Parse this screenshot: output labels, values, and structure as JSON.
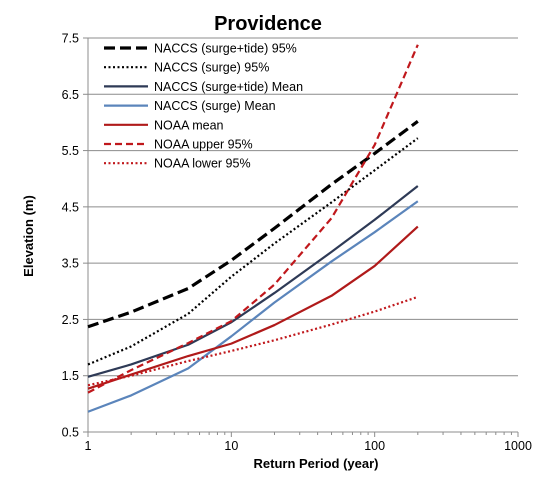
{
  "chart_data": {
    "type": "line",
    "title": "Providence",
    "xlabel": "Return Period (year)",
    "ylabel": "Elevation (m)",
    "x_scale": "log",
    "xlim": [
      1,
      1000
    ],
    "ylim": [
      0.5,
      7.5
    ],
    "x_ticks": [
      1,
      10,
      100,
      1000
    ],
    "x_tick_labels": [
      "1",
      "10",
      "100",
      "1000"
    ],
    "y_ticks": [
      0.5,
      1.5,
      2.5,
      3.5,
      4.5,
      5.5,
      6.5,
      7.5
    ],
    "y_tick_labels": [
      "0.5",
      "1.5",
      "2.5",
      "3.5",
      "4.5",
      "5.5",
      "6.5",
      "7.5"
    ],
    "grid": "horizontal",
    "legend_position": "top-left",
    "series": [
      {
        "name": "NACCS (surge+tide) 95%",
        "color": "#000000",
        "dash": "long-dash",
        "x": [
          1,
          2,
          5,
          10,
          20,
          50,
          100,
          200
        ],
        "y": [
          2.37,
          2.63,
          3.05,
          3.55,
          4.12,
          4.9,
          5.45,
          6.02
        ]
      },
      {
        "name": "NACCS (surge) 95%",
        "color": "#000000",
        "dash": "dot",
        "x": [
          1,
          2,
          5,
          10,
          20,
          50,
          100,
          200
        ],
        "y": [
          1.7,
          2.02,
          2.6,
          3.26,
          3.85,
          4.58,
          5.15,
          5.72
        ]
      },
      {
        "name": "NACCS (surge+tide) Mean",
        "color": "#2e3a56",
        "dash": "solid",
        "x": [
          1,
          2,
          5,
          10,
          20,
          50,
          100,
          200
        ],
        "y": [
          1.48,
          1.7,
          2.05,
          2.45,
          2.97,
          3.7,
          4.27,
          4.87
        ]
      },
      {
        "name": "NACCS (surge) Mean",
        "color": "#5b85bb",
        "dash": "solid",
        "x": [
          1,
          2,
          5,
          10,
          20,
          50,
          100,
          200
        ],
        "y": [
          0.86,
          1.15,
          1.63,
          2.2,
          2.8,
          3.53,
          4.05,
          4.6
        ]
      },
      {
        "name": "NOAA mean",
        "color": "#b01a1a",
        "dash": "solid",
        "x": [
          1,
          2,
          5,
          10,
          20,
          50,
          100,
          200
        ],
        "y": [
          1.27,
          1.52,
          1.85,
          2.07,
          2.4,
          2.92,
          3.45,
          4.15
        ]
      },
      {
        "name": "NOAA upper 95%",
        "color": "#c0181c",
        "dash": "dash",
        "x": [
          1,
          2,
          5,
          10,
          20,
          50,
          100,
          200
        ],
        "y": [
          1.2,
          1.6,
          2.08,
          2.47,
          3.12,
          4.3,
          5.6,
          7.38
        ]
      },
      {
        "name": "NOAA lower 95%",
        "color": "#c0181c",
        "dash": "dot",
        "x": [
          1,
          2,
          5,
          10,
          20,
          50,
          100,
          200
        ],
        "y": [
          1.33,
          1.5,
          1.76,
          1.94,
          2.13,
          2.41,
          2.64,
          2.9
        ]
      }
    ]
  }
}
